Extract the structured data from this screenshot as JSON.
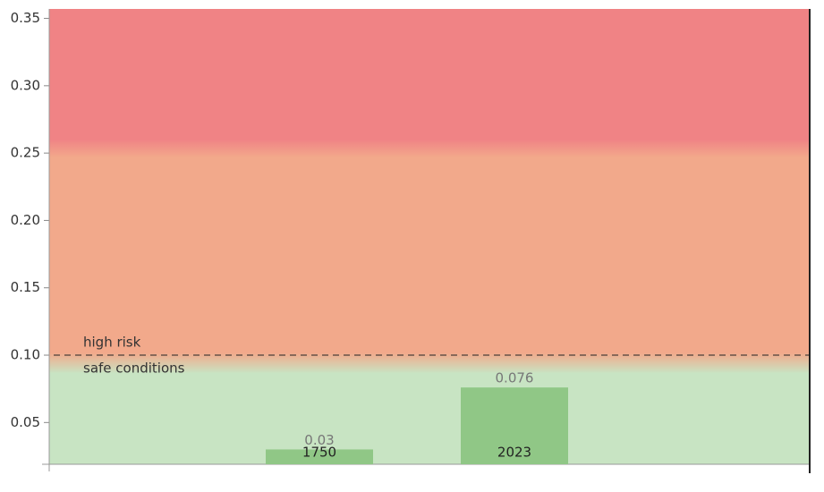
{
  "chart_data": {
    "type": "bar",
    "categories": [
      "1750",
      "2023"
    ],
    "values": [
      0.03,
      0.076
    ],
    "color": "#90c786",
    "ylim": [
      0.019,
      0.357
    ],
    "yticks": [
      0.05,
      {
        "value": 0.1,
        "label": "0.10"
      },
      0.15,
      {
        "value": 0.2,
        "label": "0.20"
      },
      0.25,
      {
        "value": 0.3,
        "label": "0.30"
      },
      0.35
    ],
    "threshold": 0.1,
    "annotations": [
      "high risk",
      "safe conditions"
    ],
    "band_edges": [
      0.1,
      0.25
    ],
    "band_colors": [
      "#c8e4c3",
      "#f2a98b",
      "#f08385"
    ]
  }
}
